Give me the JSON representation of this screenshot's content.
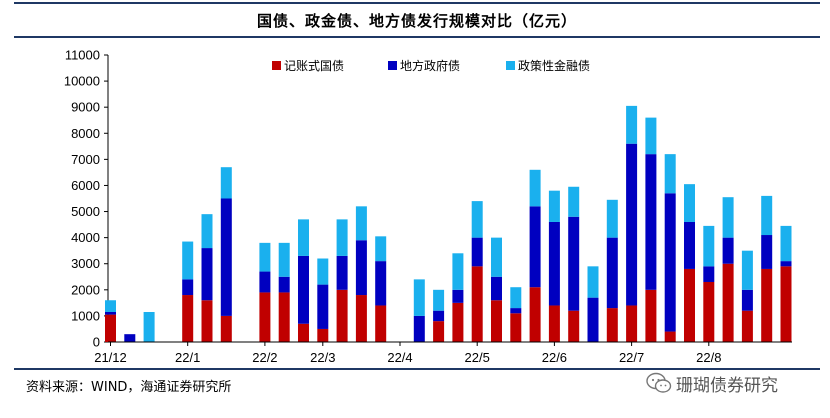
{
  "title": "国债、政金债、地方债发行规模对比（亿元）",
  "source": "资料来源：WIND，海通证券研究所",
  "watermark": "珊瑚债券研究",
  "colors": {
    "treasury": "#c00000",
    "local_gov": "#0000c0",
    "policy_bank": "#1ab0ee",
    "frame": "#1f3864"
  },
  "chart_data": {
    "type": "bar",
    "stacked": true,
    "title": "国债、政金债、地方债发行规模对比（亿元）",
    "ylabel": "",
    "xlabel": "",
    "ylim": [
      0,
      11000
    ],
    "yticks": [
      0,
      1000,
      2000,
      3000,
      4000,
      5000,
      6000,
      7000,
      8000,
      9000,
      10000,
      11000
    ],
    "grid": false,
    "legend_position": "top-center",
    "x_tick_labels": [
      {
        "label": "21/12",
        "index": 0
      },
      {
        "label": "22/1",
        "index": 4
      },
      {
        "label": "22/2",
        "index": 8
      },
      {
        "label": "22/3",
        "index": 11
      },
      {
        "label": "22/4",
        "index": 15
      },
      {
        "label": "22/5",
        "index": 19
      },
      {
        "label": "22/6",
        "index": 23
      },
      {
        "label": "22/7",
        "index": 27
      },
      {
        "label": "22/8",
        "index": 31
      }
    ],
    "bar_positions": [
      0,
      1,
      2,
      4,
      5,
      6,
      8,
      9,
      10,
      11,
      12,
      13,
      14,
      16,
      17,
      18,
      19,
      20,
      21,
      22,
      23,
      24,
      25,
      26,
      27,
      28,
      29,
      30,
      31,
      32,
      33,
      34,
      35
    ],
    "series": [
      {
        "name": "记账式国债",
        "color_key": "treasury",
        "values": [
          1050,
          0,
          0,
          1800,
          1600,
          1000,
          1900,
          1900,
          700,
          500,
          2000,
          1800,
          1400,
          0,
          800,
          1500,
          2900,
          1600,
          1100,
          2100,
          1400,
          1200,
          0,
          1300,
          1400,
          2000,
          400,
          2800,
          2300,
          3000,
          1200,
          2800,
          2900
        ]
      },
      {
        "name": "地方政府债",
        "color_key": "local_gov",
        "values": [
          100,
          300,
          0,
          600,
          2000,
          4500,
          800,
          600,
          2600,
          1700,
          1300,
          2100,
          1700,
          1000,
          400,
          500,
          1100,
          900,
          200,
          3100,
          3200,
          3600,
          1700,
          2700,
          6200,
          5200,
          5300,
          1800,
          600,
          1000,
          800,
          1300,
          200
        ]
      },
      {
        "name": "政策性金融债",
        "color_key": "policy_bank",
        "values": [
          450,
          0,
          1150,
          1450,
          1300,
          1200,
          1100,
          1300,
          1400,
          1000,
          1400,
          1300,
          950,
          1400,
          800,
          1400,
          1400,
          1500,
          800,
          1400,
          1200,
          1150,
          1200,
          1450,
          1450,
          1400,
          1500,
          1450,
          1550,
          1550,
          1500,
          1500,
          1350
        ]
      }
    ]
  }
}
